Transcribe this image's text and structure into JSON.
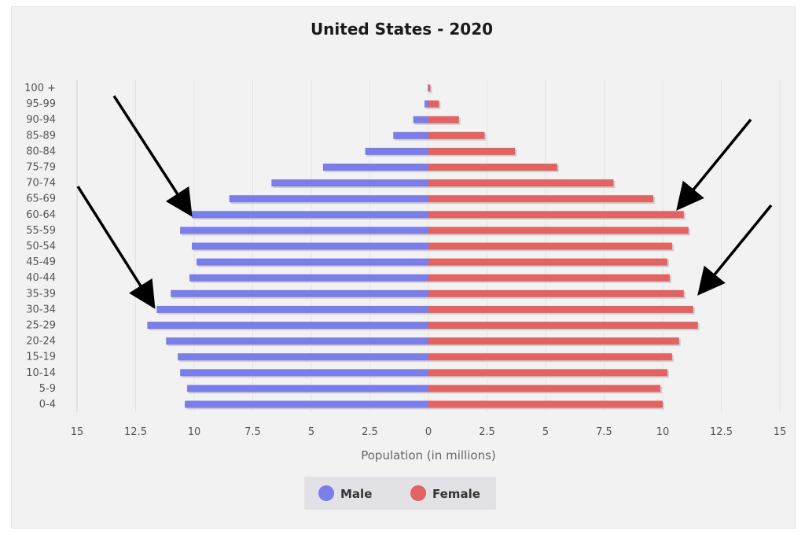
{
  "chart_data": {
    "type": "bar",
    "orientation": "horizontal",
    "title": "United States - 2020",
    "xlabel": "Population (in millions)",
    "ylabel": "",
    "xlim": [
      -15,
      15
    ],
    "x_ticks": [
      -15,
      -12.5,
      -10,
      -7.5,
      -5,
      -2.5,
      0,
      2.5,
      5,
      7.5,
      10,
      12.5,
      15
    ],
    "x_tick_labels": [
      "15",
      "12.5",
      "10",
      "7.5",
      "5",
      "2.5",
      "0",
      "2.5",
      "5",
      "7.5",
      "10",
      "12.5",
      "15"
    ],
    "grid": true,
    "legend_position": "bottom-center",
    "categories": [
      "0-4",
      "5-9",
      "10-14",
      "15-19",
      "20-24",
      "25-29",
      "30-34",
      "35-39",
      "40-44",
      "45-49",
      "50-54",
      "55-59",
      "60-64",
      "65-69",
      "70-74",
      "75-79",
      "80-84",
      "85-89",
      "90-94",
      "95-99",
      "100 +"
    ],
    "series": [
      {
        "name": "Male",
        "color": "#7b7ee8",
        "values": [
          10.4,
          10.3,
          10.6,
          10.7,
          11.2,
          12.0,
          11.6,
          11.0,
          10.2,
          9.9,
          10.1,
          10.6,
          10.1,
          8.5,
          6.7,
          4.5,
          2.7,
          1.5,
          0.65,
          0.17,
          0.03
        ]
      },
      {
        "name": "Female",
        "color": "#e36262",
        "values": [
          10.0,
          9.9,
          10.2,
          10.4,
          10.7,
          11.5,
          11.3,
          10.9,
          10.3,
          10.2,
          10.4,
          11.1,
          10.9,
          9.6,
          7.9,
          5.5,
          3.7,
          2.4,
          1.3,
          0.45,
          0.08
        ]
      }
    ],
    "annotations": [
      {
        "type": "arrow",
        "description": "points to male 60-64 bar"
      },
      {
        "type": "arrow",
        "description": "points to male 35-39 bar"
      },
      {
        "type": "arrow",
        "description": "points to female 65-69 bar"
      },
      {
        "type": "arrow",
        "description": "points to female 35-39 bar"
      }
    ]
  },
  "legend": {
    "items": [
      {
        "label": "Male",
        "color": "#7b7ee8"
      },
      {
        "label": "Female",
        "color": "#e36262"
      }
    ]
  }
}
